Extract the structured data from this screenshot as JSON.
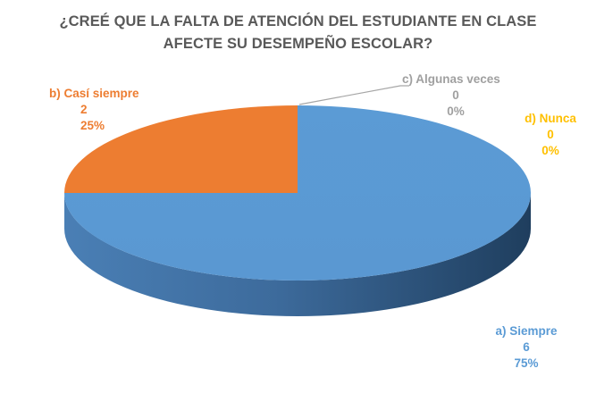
{
  "chart_data": {
    "type": "pie",
    "variant": "3d",
    "title_lines": [
      "¿CREÉ QUE LA FALTA DE ATENCIÓN DEL ESTUDIANTE EN CLASE",
      "AFECTE SU DESEMPEÑO ESCOLAR?"
    ],
    "start_angle_deg": 0,
    "direction": "clockwise",
    "slices": [
      {
        "label": "a) Siempre",
        "value": 6,
        "percent": "75%",
        "color": "#5b9bd5",
        "side_color": "#2f5f8f"
      },
      {
        "label": "b) Casí siempre",
        "value": 2,
        "percent": "25%",
        "color": "#ed7d31",
        "side_color": "#b55a1c"
      },
      {
        "label": "c) Algunas veces",
        "value": 0,
        "percent": "0%",
        "color": "#a5a5a5",
        "side_color": "#7f7f7f"
      },
      {
        "label": "d) Nunca",
        "value": 0,
        "percent": "0%",
        "color": "#ffc000",
        "side_color": "#bf9000"
      }
    ],
    "legend": "none"
  }
}
